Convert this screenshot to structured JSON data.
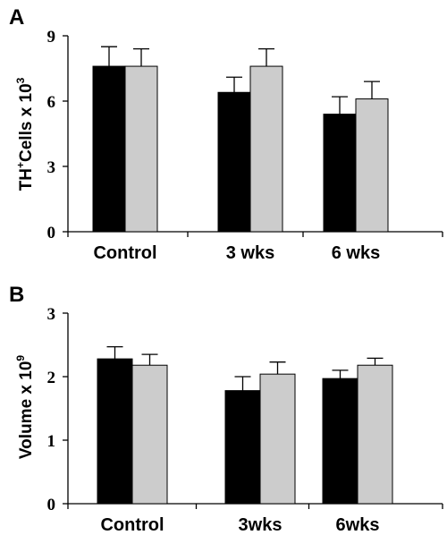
{
  "chart_data": [
    {
      "type": "bar",
      "panel": "A",
      "ylabel": {
        "main": "TH",
        "sup1": "+",
        "mid": "Cells x 10",
        "sup2": "3"
      },
      "categories": [
        "Control",
        "3 wks",
        "6 wks"
      ],
      "yticks": [
        "0",
        "3",
        "6",
        "9"
      ],
      "ylim": [
        0,
        9
      ],
      "series": [
        {
          "color": "#000000",
          "values": [
            7.6,
            6.4,
            5.4
          ],
          "errors": [
            0.9,
            0.7,
            0.8
          ]
        },
        {
          "color": "#cccccc",
          "values": [
            7.6,
            7.6,
            6.1
          ],
          "errors": [
            0.8,
            0.8,
            0.8
          ]
        }
      ]
    },
    {
      "type": "bar",
      "panel": "B",
      "ylabel": {
        "main": "Volume x 10",
        "sup1": "9"
      },
      "categories": [
        "Control",
        "3wks",
        "6wks"
      ],
      "yticks": [
        "0",
        "1",
        "2",
        "3"
      ],
      "ylim": [
        0,
        3
      ],
      "series": [
        {
          "color": "#000000",
          "values": [
            2.28,
            1.78,
            1.97
          ],
          "errors": [
            0.19,
            0.22,
            0.13
          ]
        },
        {
          "color": "#cccccc",
          "values": [
            2.18,
            2.04,
            2.18
          ],
          "errors": [
            0.17,
            0.19,
            0.11
          ]
        }
      ]
    }
  ]
}
